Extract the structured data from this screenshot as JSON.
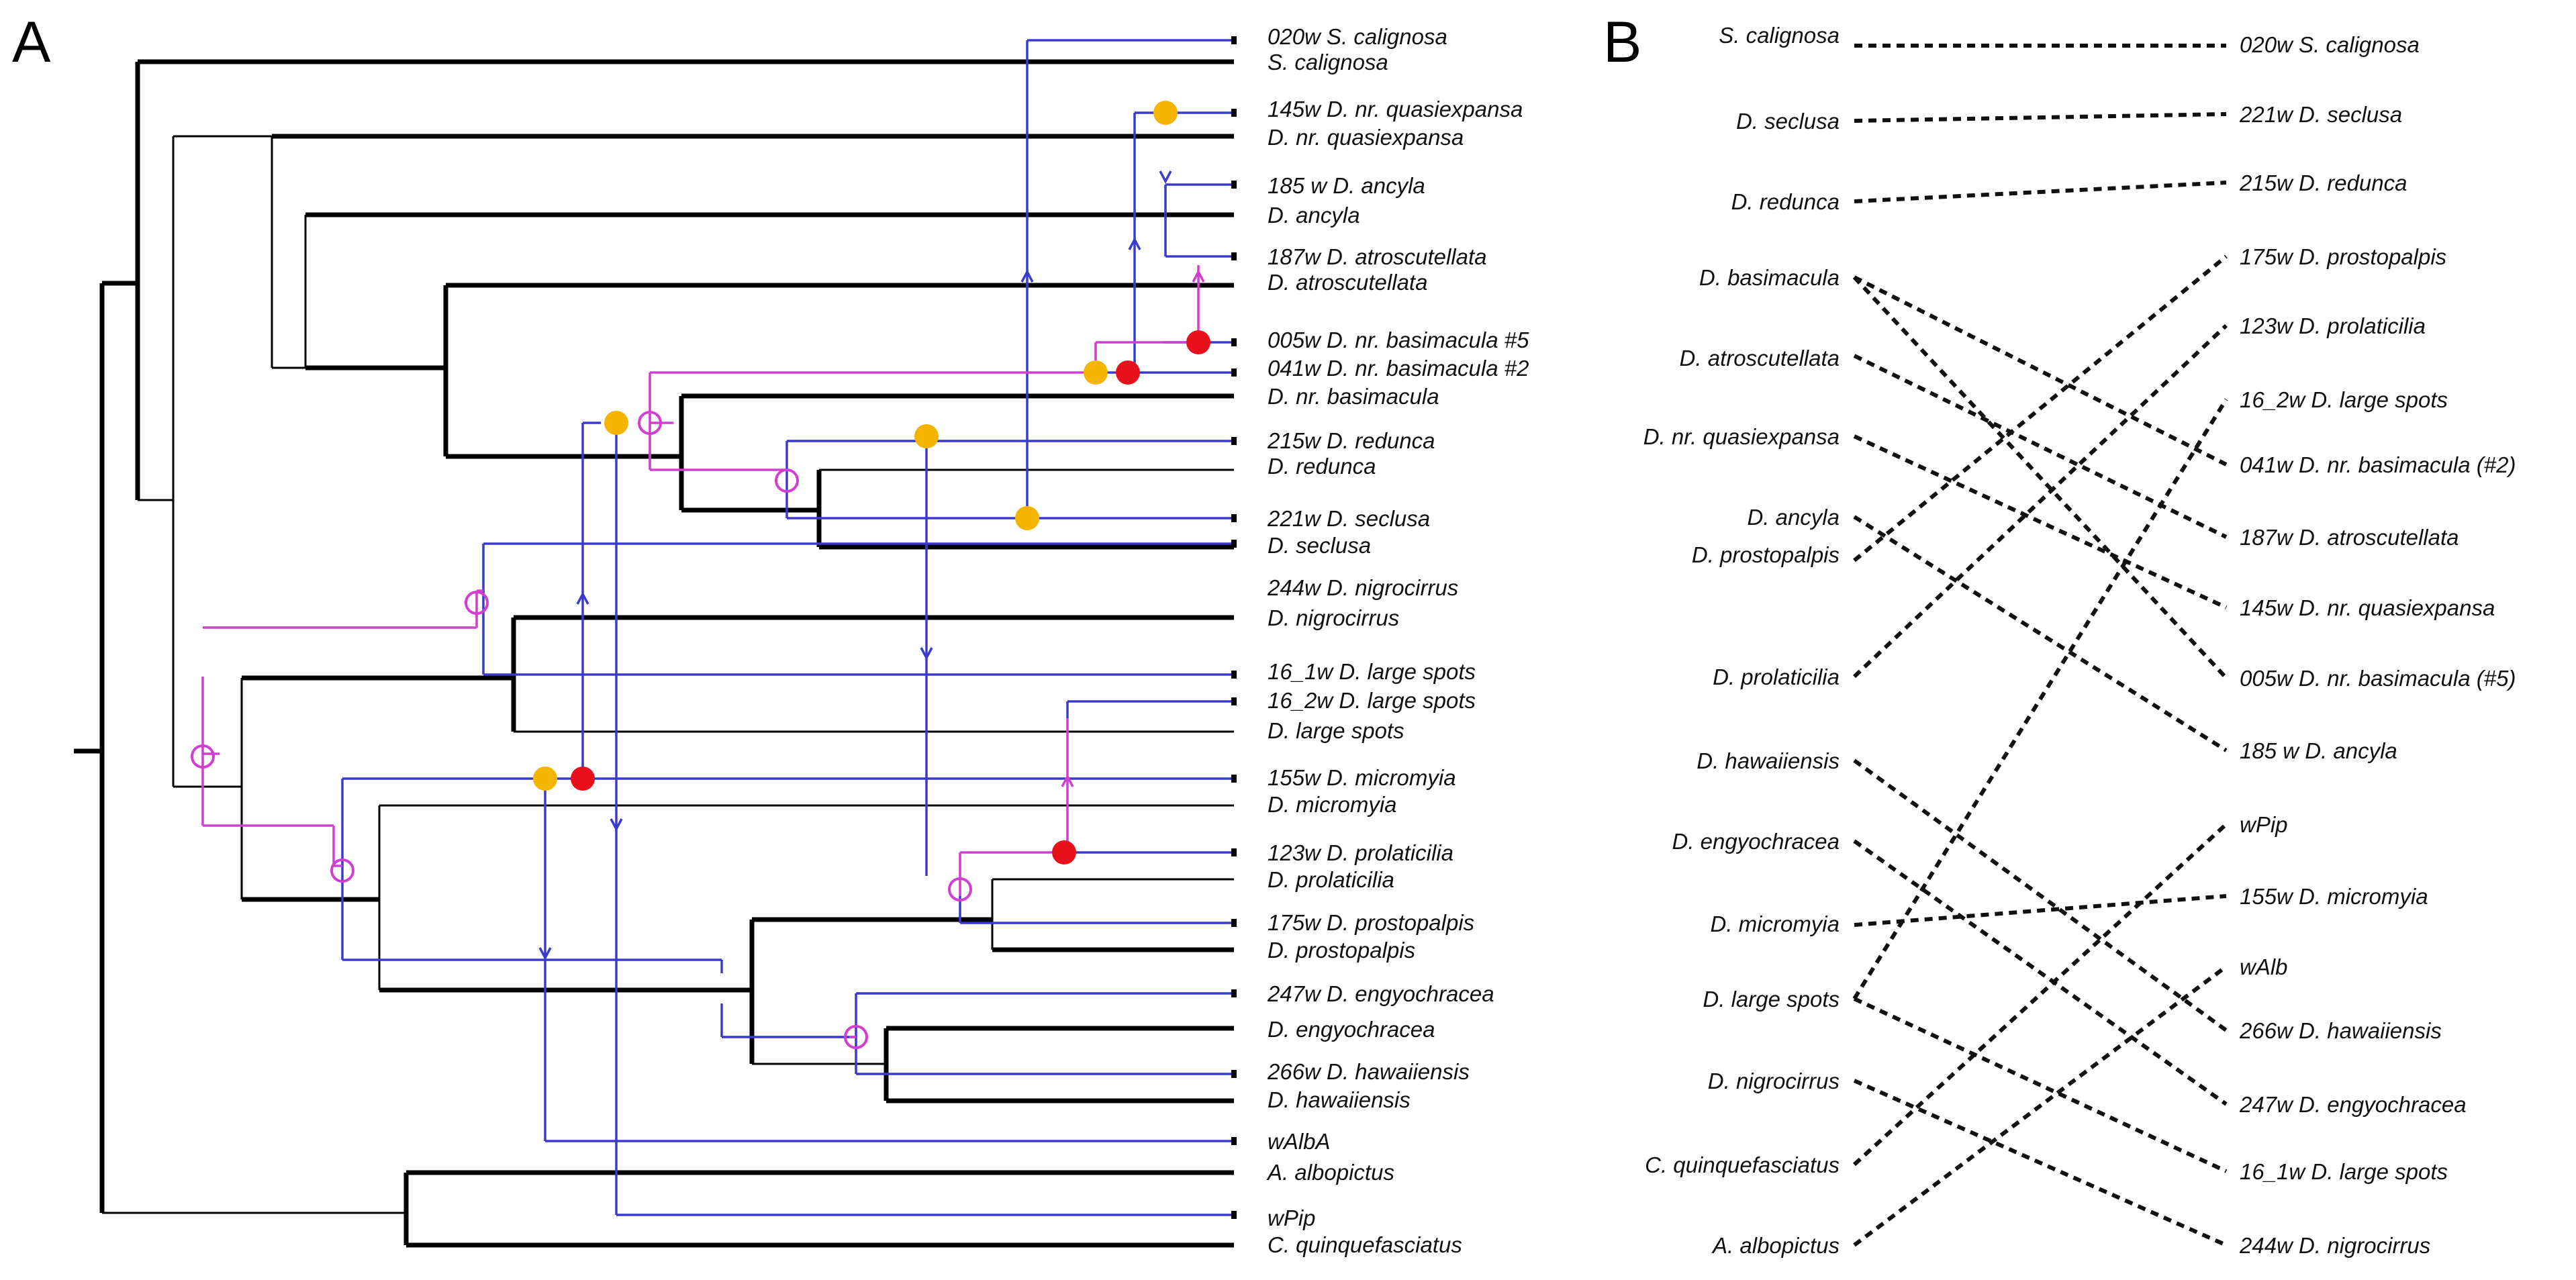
{
  "panels": {
    "a": "A",
    "b": "B"
  },
  "colors": {
    "host": "#000000",
    "symbiont": "#3a3acc",
    "switch": "#d13fd1",
    "duplication": "#f5b400",
    "loss": "#e8101a"
  },
  "tree_labels": {
    "t1": "020w S. calignosa",
    "t2": "S. calignosa",
    "t3": "145w D. nr. quasiexpansa",
    "t4": "D. nr. quasiexpansa",
    "t5": "185 w D. ancyla",
    "t6": "D. ancyla",
    "t7": "187w D. atroscutellata",
    "t8": "D. atroscutellata",
    "t9": "005w D. nr. basimacula #5",
    "t10": "041w D. nr. basimacula #2",
    "t11": "D. nr. basimacula",
    "t12": "215w D. redunca",
    "t13": "D. redunca",
    "t14": "221w D. seclusa",
    "t15": "D. seclusa",
    "t16": "244w D. nigrocirrus",
    "t17": "D. nigrocirrus",
    "t18": "16_1w D. large spots",
    "t19": "16_2w D. large spots",
    "t20": "D. large spots",
    "t21": "155w D. micromyia",
    "t22": "D. micromyia",
    "t23": "123w D. prolaticilia",
    "t24": "D. prolaticilia",
    "t25": "175w D. prostopalpis",
    "t26": "D. prostopalpis",
    "t27": "247w D. engyochracea",
    "t28": "D. engyochracea",
    "t29": "266w D. hawaiiensis",
    "t30": "D. hawaiiensis",
    "t31": "wAlbA",
    "t32": "A. albopictus",
    "t33": "wPip",
    "t34": "C. quinquefasciatus"
  },
  "tangle_left": {
    "l1": "S. calignosa",
    "l2": "D. seclusa",
    "l3": "D. redunca",
    "l4": "D. basimacula",
    "l5": "D. atroscutellata",
    "l6": "D. nr. quasiexpansa",
    "l7": "D. ancyla",
    "l8": "D. prostopalpis",
    "l9": "D. prolaticilia",
    "l10": "D. hawaiiensis",
    "l11": "D. engyochracea",
    "l12": "D. micromyia",
    "l13": "D. large spots",
    "l14": "D. nigrocirrus",
    "l15": "C. quinquefasciatus",
    "l16": "A. albopictus"
  },
  "tangle_right": {
    "r1": "020w S. calignosa",
    "r2": "221w D. seclusa",
    "r3": "215w D. redunca",
    "r4": "175w D. prostopalpis",
    "r5": "123w D. prolaticilia",
    "r6": "16_2w D. large spots",
    "r7": "041w D. nr. basimacula (#2)",
    "r8": "187w D. atroscutellata",
    "r9": "145w D. nr. quasiexpansa",
    "r10": "005w D. nr. basimacula (#5)",
    "r11": "185 w D. ancyla",
    "r12": "wPip",
    "r13": "155w D. micromyia",
    "r14": "wAlb",
    "r15": "266w D. hawaiiensis",
    "r16": "247w D. engyochracea",
    "r17": "16_1w D. large spots",
    "r18": "244w D. nigrocirrus"
  },
  "tangle_links": [
    [
      "S. calignosa",
      "020w S. calignosa"
    ],
    [
      "D. seclusa",
      "221w D. seclusa"
    ],
    [
      "D. redunca",
      "215w D. redunca"
    ],
    [
      "D. basimacula",
      "041w D. nr. basimacula (#2)"
    ],
    [
      "D. basimacula",
      "005w D. nr. basimacula (#5)"
    ],
    [
      "D. atroscutellata",
      "187w D. atroscutellata"
    ],
    [
      "D. nr. quasiexpansa",
      "145w D. nr. quasiexpansa"
    ],
    [
      "D. ancyla",
      "185 w D. ancyla"
    ],
    [
      "D. prostopalpis",
      "175w D. prostopalpis"
    ],
    [
      "D. prolaticilia",
      "123w D. prolaticilia"
    ],
    [
      "D. hawaiiensis",
      "266w D. hawaiiensis"
    ],
    [
      "D. engyochracea",
      "247w D. engyochracea"
    ],
    [
      "D. micromyia",
      "155w D. micromyia"
    ],
    [
      "D. large spots",
      "16_2w D. large spots"
    ],
    [
      "D. large spots",
      "16_1w D. large spots"
    ],
    [
      "D. nigrocirrus",
      "244w D. nigrocirrus"
    ],
    [
      "C. quinquefasciatus",
      "wPip"
    ],
    [
      "A. albopictus",
      "wAlb"
    ]
  ]
}
